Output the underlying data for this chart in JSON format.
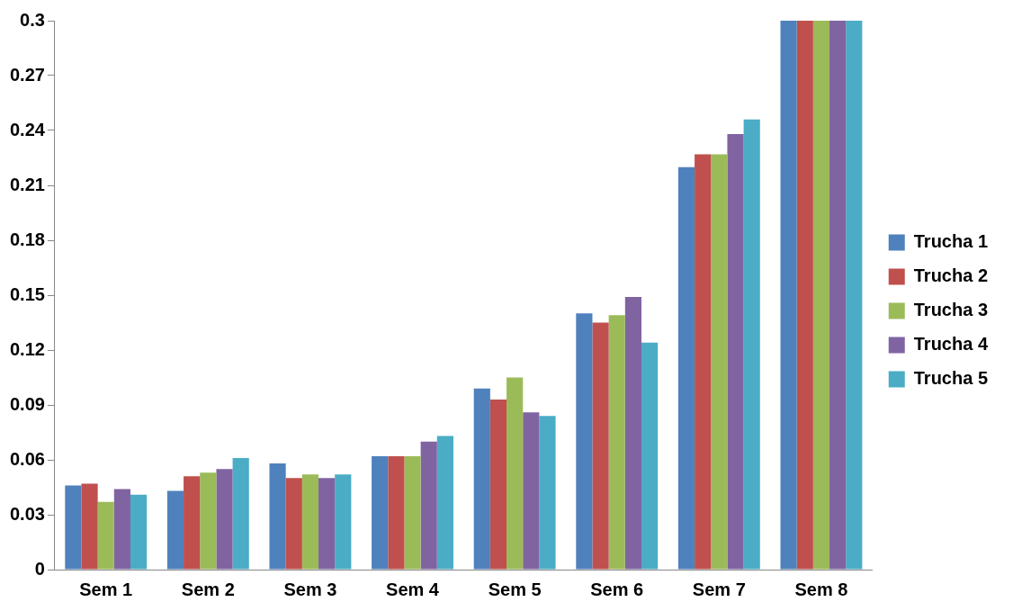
{
  "chart_data": {
    "type": "bar",
    "categories": [
      "Sem 1",
      "Sem 2",
      "Sem 3",
      "Sem 4",
      "Sem 5",
      "Sem 6",
      "Sem 7",
      "Sem 8"
    ],
    "series": [
      {
        "name": "Trucha 1",
        "color": "#4f81bd",
        "values": [
          0.046,
          0.043,
          0.058,
          0.062,
          0.099,
          0.14,
          0.22,
          0.3
        ]
      },
      {
        "name": "Trucha 2",
        "color": "#c0504d",
        "values": [
          0.047,
          0.051,
          0.05,
          0.062,
          0.093,
          0.135,
          0.227,
          0.3
        ]
      },
      {
        "name": "Trucha 3",
        "color": "#9bbb59",
        "values": [
          0.037,
          0.053,
          0.052,
          0.062,
          0.105,
          0.139,
          0.227,
          0.3
        ]
      },
      {
        "name": "Trucha 4",
        "color": "#8064a2",
        "values": [
          0.044,
          0.055,
          0.05,
          0.07,
          0.086,
          0.149,
          0.238,
          0.3
        ]
      },
      {
        "name": "Trucha 5",
        "color": "#4bacc6",
        "values": [
          0.041,
          0.061,
          0.052,
          0.073,
          0.084,
          0.124,
          0.246,
          0.3
        ]
      }
    ],
    "ylim": [
      0,
      0.3
    ],
    "yticks": [
      0,
      0.03,
      0.06,
      0.09,
      0.12,
      0.15,
      0.18,
      0.21,
      0.24,
      0.27,
      0.3
    ],
    "grid": false,
    "legend": "right"
  }
}
